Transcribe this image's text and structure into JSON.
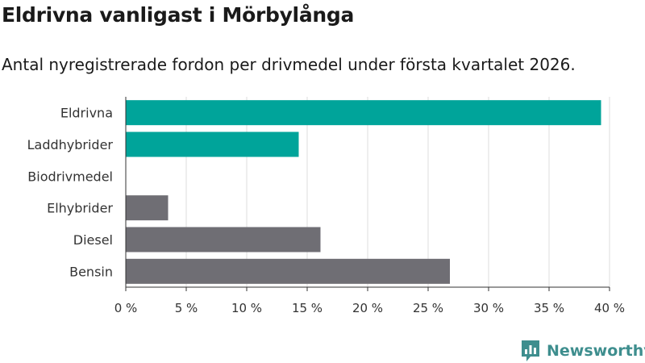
{
  "header": {
    "title": "Eldrivna vanligast i Mörbylånga",
    "subtitle": "Antal nyregistrerade fordon per drivmedel under första kvartalet 2026."
  },
  "brand": {
    "name": "Newsworthy",
    "logo_icon": "newsworthy-logo-icon",
    "color": "#3e8e8e"
  },
  "colors": {
    "highlight": "#00a49a",
    "default": "#6f6e74",
    "grid": "#dcdcdc",
    "axis": "#333333",
    "text": "#333333"
  },
  "chart_data": {
    "type": "bar",
    "orientation": "horizontal",
    "title": "Eldrivna vanligast i Mörbylånga",
    "subtitle": "Antal nyregistrerade fordon per drivmedel under första kvartalet 2026.",
    "categories": [
      "Eldrivna",
      "Laddhybrider",
      "Biodrivmedel",
      "Elhybrider",
      "Diesel",
      "Bensin"
    ],
    "values": [
      39.3,
      14.3,
      0,
      3.5,
      16.1,
      26.8
    ],
    "highlighted": [
      true,
      true,
      false,
      false,
      false,
      false
    ],
    "xlabel": "",
    "ylabel": "",
    "xlim": [
      0,
      40
    ],
    "ticks": [
      0,
      5,
      10,
      15,
      20,
      25,
      30,
      35,
      40
    ],
    "tick_labels": [
      "0 %",
      "5 %",
      "10 %",
      "15 %",
      "20 %",
      "25 %",
      "30 %",
      "35 %",
      "40 %"
    ],
    "grid": true,
    "legend": "none"
  }
}
